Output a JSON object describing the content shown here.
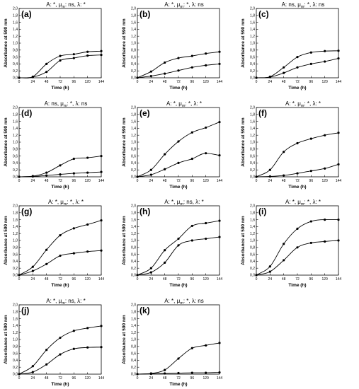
{
  "chart_data": [
    {
      "type": "line",
      "letter": "(a)",
      "title_parts": [
        "A: *, ",
        "μ",
        "m",
        ": ns, λ: *"
      ],
      "xlabel": "Time (h)",
      "ylabel": "Absorbance at 590 nm",
      "xlim": [
        0,
        144
      ],
      "ylim": [
        0,
        2.0
      ],
      "x_ticks": [
        0,
        24,
        48,
        72,
        96,
        120,
        144
      ],
      "y_ticks": [
        "0,0",
        "0,2",
        "0,4",
        "0,6",
        "0,8",
        "1,0",
        "1,2",
        "1,4",
        "1,6",
        "1,8",
        "2,0"
      ],
      "series": [
        {
          "x": [
            0,
            24,
            48,
            72,
            96,
            120,
            144
          ],
          "y": [
            0.0,
            0.03,
            0.4,
            0.63,
            0.68,
            0.75,
            0.77
          ]
        },
        {
          "x": [
            0,
            24,
            48,
            72,
            96,
            120,
            144
          ],
          "y": [
            0.0,
            0.02,
            0.17,
            0.5,
            0.57,
            0.64,
            0.66
          ]
        }
      ]
    },
    {
      "type": "line",
      "letter": "(b)",
      "title_parts": [
        "A: *, ",
        "μ",
        "m",
        ": *, λ: ns"
      ],
      "xlabel": "Time (h)",
      "ylabel": "Absorbance at 590 nm",
      "xlim": [
        0,
        144
      ],
      "ylim": [
        0,
        2.0
      ],
      "x_ticks": [
        0,
        24,
        48,
        72,
        96,
        120,
        144
      ],
      "y_ticks": [
        "0,0",
        "0,2",
        "0,4",
        "0,6",
        "0,8",
        "1,0",
        "1,2",
        "1,4",
        "1,6",
        "1,8",
        "2,0"
      ],
      "series": [
        {
          "x": [
            0,
            24,
            48,
            72,
            96,
            120,
            144
          ],
          "y": [
            0.0,
            0.18,
            0.44,
            0.57,
            0.63,
            0.7,
            0.75
          ]
        },
        {
          "x": [
            0,
            24,
            48,
            72,
            96,
            120,
            144
          ],
          "y": [
            0.0,
            0.05,
            0.12,
            0.21,
            0.3,
            0.36,
            0.4
          ]
        }
      ]
    },
    {
      "type": "line",
      "letter": "(c)",
      "title_parts": [
        "A: ns, ",
        "μ",
        "m",
        ": *, λ: ns"
      ],
      "xlabel": "Time (h)",
      "ylabel": "Absorbance at 590 nm",
      "xlim": [
        0,
        144
      ],
      "ylim": [
        0,
        2.0
      ],
      "x_ticks": [
        0,
        24,
        48,
        72,
        96,
        120,
        144
      ],
      "y_ticks": [
        "0,0",
        "0,2",
        "0,4",
        "0,6",
        "0,8",
        "1,0",
        "1,2",
        "1,4",
        "1,6",
        "1,8",
        "2,0"
      ],
      "series": [
        {
          "x": [
            0,
            24,
            48,
            72,
            96,
            120,
            144
          ],
          "y": [
            0.0,
            0.03,
            0.3,
            0.6,
            0.73,
            0.77,
            0.78
          ]
        },
        {
          "x": [
            0,
            24,
            48,
            72,
            96,
            120,
            144
          ],
          "y": [
            0.0,
            0.02,
            0.14,
            0.3,
            0.4,
            0.47,
            0.56
          ]
        }
      ]
    },
    {
      "type": "line",
      "letter": "(d)",
      "title_parts": [
        "A: ns, ",
        "μ",
        "m",
        ": *, λ: ns"
      ],
      "xlabel": "Time (h)",
      "ylabel": "Absorbance at 590 nm",
      "xlim": [
        0,
        144
      ],
      "ylim": [
        0,
        2.0
      ],
      "x_ticks": [
        0,
        24,
        48,
        72,
        96,
        120,
        144
      ],
      "y_ticks": [
        "0,0",
        "0,2",
        "0,4",
        "0,6",
        "0,8",
        "1,0",
        "1,2",
        "1,4",
        "1,6",
        "1,8",
        "2,0"
      ],
      "series": [
        {
          "x": [
            0,
            24,
            48,
            72,
            96,
            120,
            144
          ],
          "y": [
            0.0,
            0.02,
            0.12,
            0.33,
            0.52,
            0.55,
            0.6
          ]
        },
        {
          "x": [
            0,
            24,
            48,
            72,
            96,
            120,
            144
          ],
          "y": [
            0.0,
            0.01,
            0.04,
            0.07,
            0.1,
            0.12,
            0.14
          ]
        }
      ]
    },
    {
      "type": "line",
      "letter": "(e)",
      "title_parts": [
        "A: *, ",
        "μ",
        "m",
        ": *, λ: *"
      ],
      "xlabel": "Time (h)",
      "ylabel": "Absorbance at 590 nm",
      "xlim": [
        0,
        144
      ],
      "ylim": [
        0,
        2.0
      ],
      "x_ticks": [
        0,
        24,
        48,
        72,
        96,
        120,
        144
      ],
      "y_ticks": [
        "0,0",
        "0,2",
        "0,4",
        "0,6",
        "0,8",
        "1,0",
        "1,2",
        "1,4",
        "1,6",
        "1,8",
        "2,0"
      ],
      "series": [
        {
          "x": [
            0,
            24,
            48,
            72,
            96,
            120,
            144
          ],
          "y": [
            0.0,
            0.2,
            0.65,
            1.02,
            1.28,
            1.42,
            1.58
          ]
        },
        {
          "x": [
            0,
            24,
            48,
            72,
            96,
            120,
            144
          ],
          "y": [
            0.0,
            0.06,
            0.22,
            0.4,
            0.52,
            0.68,
            0.62
          ]
        }
      ]
    },
    {
      "type": "line",
      "letter": "(f)",
      "title_parts": [
        "A: *, ",
        "μ",
        "m",
        ": *, λ: *"
      ],
      "xlabel": "Time (h)",
      "ylabel": "Absorbance at 590 nm",
      "xlim": [
        0,
        144
      ],
      "ylim": [
        0,
        2.0
      ],
      "x_ticks": [
        0,
        24,
        48,
        72,
        96,
        120,
        144
      ],
      "y_ticks": [
        "0,0",
        "0,2",
        "0,4",
        "0,6",
        "0,8",
        "1,0",
        "1,2",
        "1,4",
        "1,6",
        "1,8",
        "2,0"
      ],
      "series": [
        {
          "x": [
            0,
            24,
            48,
            72,
            96,
            120,
            144
          ],
          "y": [
            0.0,
            0.2,
            0.72,
            0.97,
            1.1,
            1.2,
            1.27
          ]
        },
        {
          "x": [
            0,
            24,
            48,
            72,
            96,
            120,
            144
          ],
          "y": [
            0.0,
            0.01,
            0.04,
            0.1,
            0.17,
            0.24,
            0.36
          ]
        }
      ]
    },
    {
      "type": "line",
      "letter": "(g)",
      "title_parts": [
        "A: *, ",
        "μ",
        "m",
        ": *, λ: *"
      ],
      "xlabel": "Time (h)",
      "ylabel": "Absorbance at 590 nm",
      "xlim": [
        0,
        144
      ],
      "ylim": [
        0,
        2.0
      ],
      "x_ticks": [
        0,
        24,
        48,
        72,
        96,
        120,
        144
      ],
      "y_ticks": [
        "0,0",
        "0,2",
        "0,4",
        "0,6",
        "0,8",
        "1,0",
        "1,2",
        "1,4",
        "1,6",
        "1,8",
        "2,0"
      ],
      "series": [
        {
          "x": [
            0,
            24,
            48,
            72,
            96,
            120,
            144
          ],
          "y": [
            0.0,
            0.24,
            0.73,
            1.15,
            1.35,
            1.46,
            1.58
          ]
        },
        {
          "x": [
            0,
            24,
            48,
            72,
            96,
            120,
            144
          ],
          "y": [
            0.0,
            0.12,
            0.32,
            0.56,
            0.63,
            0.68,
            0.71
          ]
        }
      ]
    },
    {
      "type": "line",
      "letter": "(h)",
      "title_parts": [
        "A: *, ",
        "μ",
        "m",
        ": ns, λ: *"
      ],
      "xlabel": "Time (h)",
      "ylabel": "Absorbance at 590 nm",
      "xlim": [
        0,
        144
      ],
      "ylim": [
        0,
        2.0
      ],
      "x_ticks": [
        0,
        24,
        48,
        72,
        96,
        120,
        144
      ],
      "y_ticks": [
        "0,0",
        "0,2",
        "0,4",
        "0,6",
        "0,8",
        "1,0",
        "1,2",
        "1,4",
        "1,6",
        "1,8",
        "2,0"
      ],
      "series": [
        {
          "x": [
            0,
            24,
            48,
            72,
            96,
            120,
            144
          ],
          "y": [
            0.0,
            0.2,
            0.72,
            1.05,
            1.42,
            1.5,
            1.57
          ]
        },
        {
          "x": [
            0,
            24,
            48,
            72,
            96,
            120,
            144
          ],
          "y": [
            0.0,
            0.08,
            0.36,
            0.86,
            1.0,
            1.05,
            1.1
          ]
        }
      ]
    },
    {
      "type": "line",
      "letter": "(i)",
      "title_parts": [
        "A: *, ",
        "μ",
        "m",
        ": *, λ: *"
      ],
      "xlabel": "Time (h)",
      "ylabel": "Absorbance at 590 nm",
      "xlim": [
        0,
        144
      ],
      "ylim": [
        0,
        2.0
      ],
      "x_ticks": [
        0,
        24,
        48,
        72,
        96,
        120,
        144
      ],
      "y_ticks": [
        "0,0",
        "0,2",
        "0,4",
        "0,6",
        "0,8",
        "1,0",
        "1,2",
        "1,4",
        "1,6",
        "1,8",
        "2,0"
      ],
      "series": [
        {
          "x": [
            0,
            24,
            48,
            72,
            96,
            120,
            144
          ],
          "y": [
            0.0,
            0.25,
            0.9,
            1.34,
            1.55,
            1.6,
            1.6
          ]
        },
        {
          "x": [
            0,
            24,
            48,
            72,
            96,
            120,
            144
          ],
          "y": [
            0.0,
            0.1,
            0.43,
            0.8,
            0.93,
            0.97,
            1.0
          ]
        }
      ]
    },
    {
      "type": "line",
      "letter": "(j)",
      "title_parts": [
        "A: *, ",
        "μ",
        "m",
        ": ns, λ: *"
      ],
      "xlabel": "Time (h)",
      "ylabel": "Absorbance at 590 nm",
      "xlim": [
        0,
        144
      ],
      "ylim": [
        0,
        2.0
      ],
      "x_ticks": [
        0,
        24,
        48,
        72,
        96,
        120,
        144
      ],
      "y_ticks": [
        "0,0",
        "0,2",
        "0,4",
        "0,6",
        "0,8",
        "1,0",
        "1,2",
        "1,4",
        "1,6",
        "1,8",
        "2,0"
      ],
      "series": [
        {
          "x": [
            0,
            24,
            48,
            72,
            96,
            120,
            144
          ],
          "y": [
            0.0,
            0.23,
            0.7,
            1.05,
            1.25,
            1.33,
            1.39
          ]
        },
        {
          "x": [
            0,
            24,
            48,
            72,
            96,
            120,
            144
          ],
          "y": [
            0.0,
            0.06,
            0.28,
            0.57,
            0.73,
            0.77,
            0.78
          ]
        }
      ]
    },
    {
      "type": "line",
      "letter": "(k)",
      "title_parts": [
        "A: *, ",
        "μ",
        "m",
        ": *, λ: ns"
      ],
      "xlabel": "Time (h)",
      "ylabel": "Absorbance at 590 nm",
      "xlim": [
        0,
        144
      ],
      "ylim": [
        0,
        2.0
      ],
      "x_ticks": [
        0,
        24,
        48,
        72,
        96,
        120,
        144
      ],
      "y_ticks": [
        "0,0",
        "0,2",
        "0,4",
        "0,6",
        "0,8",
        "1,0",
        "1,2",
        "1,4",
        "1,6",
        "1,8",
        "2,0"
      ],
      "series": [
        {
          "x": [
            0,
            24,
            48,
            72,
            96,
            120,
            144
          ],
          "y": [
            0.0,
            0.02,
            0.12,
            0.45,
            0.75,
            0.83,
            0.9
          ]
        },
        {
          "x": [
            0,
            24,
            48,
            72,
            96,
            120,
            144
          ],
          "y": [
            0.0,
            0.01,
            0.02,
            0.03,
            0.04,
            0.04,
            0.05
          ]
        }
      ]
    }
  ]
}
